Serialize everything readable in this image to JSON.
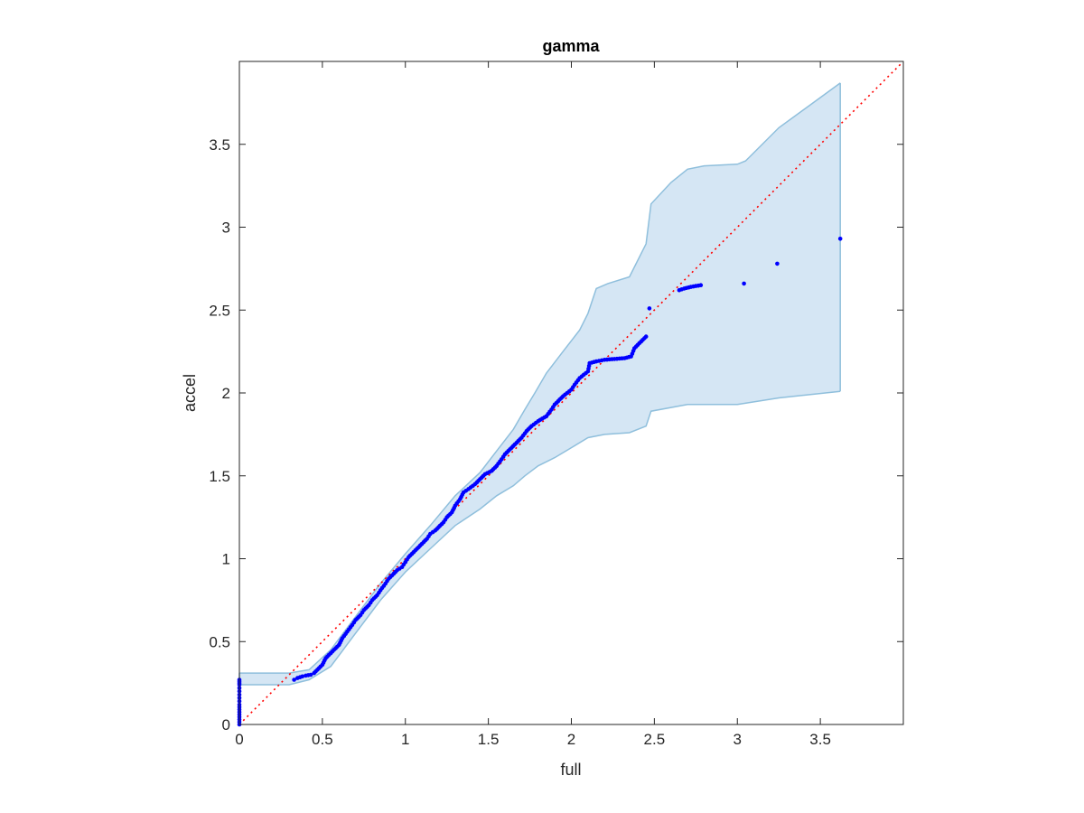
{
  "chart_data": {
    "type": "scatter",
    "title": "gamma",
    "xlabel": "full",
    "ylabel": "accel",
    "xlim": [
      0,
      4
    ],
    "ylim": [
      0,
      4
    ],
    "x_ticks": [
      0,
      0.5,
      1,
      1.5,
      2,
      2.5,
      3,
      3.5
    ],
    "y_ticks": [
      0,
      0.5,
      1,
      1.5,
      2,
      2.5,
      3,
      3.5
    ],
    "x_tick_labels": [
      "0",
      "0.5",
      "1",
      "1.5",
      "2",
      "2.5",
      "3",
      "3.5"
    ],
    "y_tick_labels": [
      "0",
      "0.5",
      "1",
      "1.5",
      "2",
      "2.5",
      "3",
      "3.5"
    ],
    "grid": false,
    "colors": {
      "points": "#0000ff",
      "reference_line": "#ff0000",
      "band_fill": "#d5e6f4",
      "band_edge": "#8fbfdc",
      "axes": "#262626"
    },
    "reference_line": {
      "style": "dotted",
      "points": [
        [
          0,
          0
        ],
        [
          4,
          4
        ]
      ]
    },
    "confidence_band": {
      "upper": [
        [
          0,
          0.31
        ],
        [
          0.3,
          0.31
        ],
        [
          0.42,
          0.33
        ],
        [
          0.55,
          0.45
        ],
        [
          0.7,
          0.65
        ],
        [
          0.85,
          0.85
        ],
        [
          1.0,
          1.03
        ],
        [
          1.15,
          1.2
        ],
        [
          1.3,
          1.38
        ],
        [
          1.45,
          1.52
        ],
        [
          1.55,
          1.65
        ],
        [
          1.65,
          1.78
        ],
        [
          1.72,
          1.9
        ],
        [
          1.78,
          2.0
        ],
        [
          1.85,
          2.12
        ],
        [
          1.95,
          2.25
        ],
        [
          2.05,
          2.38
        ],
        [
          2.1,
          2.48
        ],
        [
          2.15,
          2.63
        ],
        [
          2.22,
          2.66
        ],
        [
          2.35,
          2.7
        ],
        [
          2.45,
          2.9
        ],
        [
          2.48,
          3.14
        ],
        [
          2.6,
          3.27
        ],
        [
          2.7,
          3.35
        ],
        [
          2.8,
          3.37
        ],
        [
          3.0,
          3.38
        ],
        [
          3.05,
          3.4
        ],
        [
          3.25,
          3.6
        ],
        [
          3.62,
          3.87
        ]
      ],
      "lower": [
        [
          0,
          0.24
        ],
        [
          0.3,
          0.24
        ],
        [
          0.42,
          0.27
        ],
        [
          0.55,
          0.35
        ],
        [
          0.7,
          0.55
        ],
        [
          0.85,
          0.75
        ],
        [
          1.0,
          0.92
        ],
        [
          1.15,
          1.06
        ],
        [
          1.3,
          1.2
        ],
        [
          1.45,
          1.3
        ],
        [
          1.55,
          1.38
        ],
        [
          1.65,
          1.44
        ],
        [
          1.72,
          1.5
        ],
        [
          1.8,
          1.56
        ],
        [
          1.9,
          1.61
        ],
        [
          2.0,
          1.67
        ],
        [
          2.1,
          1.73
        ],
        [
          2.2,
          1.75
        ],
        [
          2.35,
          1.76
        ],
        [
          2.45,
          1.8
        ],
        [
          2.48,
          1.89
        ],
        [
          2.7,
          1.93
        ],
        [
          3.0,
          1.93
        ],
        [
          3.25,
          1.97
        ],
        [
          3.62,
          2.01
        ]
      ]
    },
    "series": [
      {
        "points": [
          [
            0,
            0
          ],
          [
            0,
            0.12
          ],
          [
            0,
            0.16
          ],
          [
            0,
            0.2
          ],
          [
            0,
            0.22
          ],
          [
            0,
            0.24
          ],
          [
            0,
            0.25
          ],
          [
            0,
            0.26
          ],
          [
            0,
            0.27
          ],
          [
            0.33,
            0.27
          ],
          [
            0.35,
            0.28
          ],
          [
            0.38,
            0.29
          ],
          [
            0.4,
            0.295
          ],
          [
            0.43,
            0.3
          ],
          [
            0.45,
            0.31
          ],
          [
            0.47,
            0.33
          ],
          [
            0.5,
            0.36
          ],
          [
            0.52,
            0.4
          ],
          [
            0.55,
            0.43
          ],
          [
            0.58,
            0.46
          ],
          [
            0.6,
            0.48
          ],
          [
            0.62,
            0.52
          ],
          [
            0.65,
            0.56
          ],
          [
            0.68,
            0.6
          ],
          [
            0.7,
            0.63
          ],
          [
            0.73,
            0.66
          ],
          [
            0.75,
            0.69
          ],
          [
            0.78,
            0.72
          ],
          [
            0.8,
            0.75
          ],
          [
            0.83,
            0.78
          ],
          [
            0.85,
            0.81
          ],
          [
            0.88,
            0.85
          ],
          [
            0.9,
            0.88
          ],
          [
            0.93,
            0.91
          ],
          [
            0.95,
            0.93
          ],
          [
            0.98,
            0.95
          ],
          [
            1.0,
            0.98
          ],
          [
            1.02,
            1.01
          ],
          [
            1.05,
            1.04
          ],
          [
            1.08,
            1.07
          ],
          [
            1.1,
            1.09
          ],
          [
            1.13,
            1.12
          ],
          [
            1.15,
            1.15
          ],
          [
            1.18,
            1.17
          ],
          [
            1.2,
            1.19
          ],
          [
            1.23,
            1.22
          ],
          [
            1.25,
            1.25
          ],
          [
            1.28,
            1.28
          ],
          [
            1.3,
            1.32
          ],
          [
            1.33,
            1.36
          ],
          [
            1.35,
            1.4
          ],
          [
            1.38,
            1.42
          ],
          [
            1.42,
            1.45
          ],
          [
            1.45,
            1.48
          ],
          [
            1.48,
            1.51
          ],
          [
            1.52,
            1.53
          ],
          [
            1.55,
            1.56
          ],
          [
            1.58,
            1.6
          ],
          [
            1.6,
            1.63
          ],
          [
            1.63,
            1.66
          ],
          [
            1.66,
            1.69
          ],
          [
            1.7,
            1.73
          ],
          [
            1.73,
            1.77
          ],
          [
            1.76,
            1.8
          ],
          [
            1.8,
            1.83
          ],
          [
            1.85,
            1.86
          ],
          [
            1.88,
            1.9
          ],
          [
            1.9,
            1.93
          ],
          [
            1.95,
            1.98
          ],
          [
            2.0,
            2.02
          ],
          [
            2.02,
            2.05
          ],
          [
            2.05,
            2.09
          ],
          [
            2.1,
            2.13
          ],
          [
            2.11,
            2.18
          ],
          [
            2.15,
            2.19
          ],
          [
            2.2,
            2.2
          ],
          [
            2.32,
            2.21
          ],
          [
            2.36,
            2.22
          ],
          [
            2.38,
            2.27
          ],
          [
            2.45,
            2.34
          ],
          [
            2.47,
            2.51
          ],
          [
            2.65,
            2.62
          ],
          [
            2.68,
            2.63
          ],
          [
            2.72,
            2.64
          ],
          [
            2.78,
            2.65
          ],
          [
            3.04,
            2.66
          ],
          [
            3.24,
            2.78
          ],
          [
            3.62,
            2.93
          ]
        ]
      }
    ]
  }
}
